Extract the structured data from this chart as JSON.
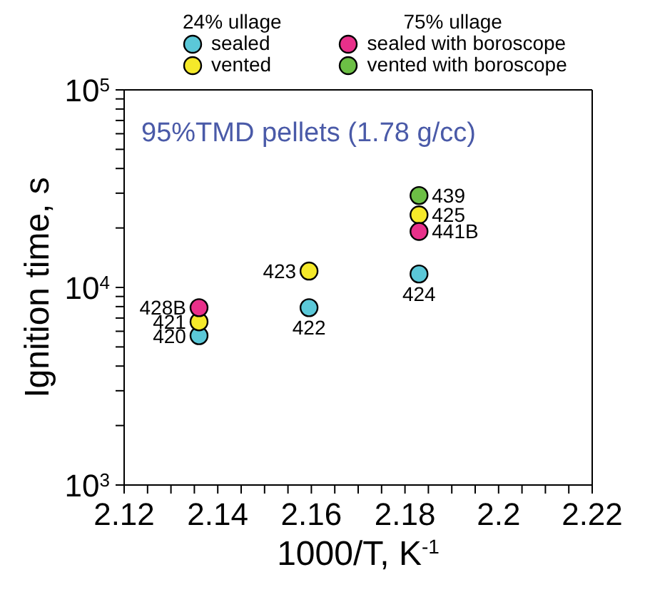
{
  "chart_data": {
    "type": "scatter",
    "xlabel": "1000/T, K$^{-1}$",
    "ylabel": "Ignition time, s",
    "annotations": [
      "95%TMD pellets (1.78 g/cc)",
      "24% ullage",
      "75% ullage",
      {
        "text": "420",
        "x": 2.136,
        "y": 5700
      },
      {
        "text": "421",
        "x": 2.136,
        "y": 6700
      },
      {
        "text": "428B",
        "x": 2.136,
        "y": 7900
      },
      {
        "text": "423",
        "x": 2.1595,
        "y": 12100
      },
      {
        "text": "422",
        "x": 2.1595,
        "y": 7900
      },
      {
        "text": "439",
        "x": 2.183,
        "y": 29200
      },
      {
        "text": "425",
        "x": 2.183,
        "y": 23300
      },
      {
        "text": "441B",
        "x": 2.183,
        "y": 19200
      },
      {
        "text": "424",
        "x": 2.183,
        "y": 11700
      }
    ],
    "series": [
      {
        "name": "sealed",
        "color": "#5bc8d8",
        "x": [
          2.136,
          2.1595,
          2.183
        ],
        "values": [
          5700,
          7900,
          11700
        ]
      },
      {
        "name": "vented",
        "color": "#f5e92a",
        "x": [
          2.136,
          2.1595,
          2.183
        ],
        "values": [
          6700,
          12100,
          23300
        ]
      },
      {
        "name": "sealed with boroscope",
        "color": "#e8308a",
        "x": [
          2.136,
          2.183
        ],
        "values": [
          7900,
          19200
        ]
      },
      {
        "name": "vented with boroscope",
        "color": "#6cbf45",
        "x": [
          2.183
        ],
        "values": [
          29200
        ]
      }
    ],
    "xlim": [
      2.12,
      2.22
    ],
    "xticks": [
      2.12,
      {
        "value": 2.125,
        "label": null
      },
      {
        "value": 2.13,
        "label": null
      },
      {
        "value": 2.135,
        "label": null
      },
      2.14,
      {
        "value": 2.145,
        "label": null
      },
      {
        "value": 2.15,
        "label": null
      },
      {
        "value": 2.155,
        "label": null
      },
      2.16,
      {
        "value": 2.165,
        "label": null
      },
      {
        "value": 2.17,
        "label": null
      },
      {
        "value": 2.175,
        "label": null
      },
      2.18,
      {
        "value": 2.185,
        "label": null
      },
      {
        "value": 2.19,
        "label": null
      },
      {
        "value": 2.195,
        "label": null
      },
      2.2,
      {
        "value": 2.205,
        "label": null
      },
      {
        "value": 2.21,
        "label": null
      },
      {
        "value": 2.215,
        "label": null
      },
      2.22
    ],
    "ylim": [
      1000,
      100000
    ],
    "yticks": [
      {
        "value": 1000,
        "label": "10$^{3}$"
      },
      {
        "value": 2000,
        "label": null
      },
      {
        "value": 3000,
        "label": null
      },
      {
        "value": 4000,
        "label": null
      },
      {
        "value": 5000,
        "label": null
      },
      {
        "value": 6000,
        "label": null
      },
      {
        "value": 7000,
        "label": null
      },
      {
        "value": 8000,
        "label": null
      },
      {
        "value": 9000,
        "label": null
      },
      {
        "value": 10000,
        "label": "10$^{4}$"
      },
      {
        "value": 20000,
        "label": null
      },
      {
        "value": 30000,
        "label": null
      },
      {
        "value": 40000,
        "label": null
      },
      {
        "value": 50000,
        "label": null
      },
      {
        "value": 60000,
        "label": null
      },
      {
        "value": 70000,
        "label": null
      },
      {
        "value": 80000,
        "label": null
      },
      {
        "value": 90000,
        "label": null
      },
      {
        "value": 100000,
        "label": "10$^{5}$"
      }
    ],
    "log": "y",
    "grid": false,
    "legend": "top",
    "marker": "circle"
  }
}
